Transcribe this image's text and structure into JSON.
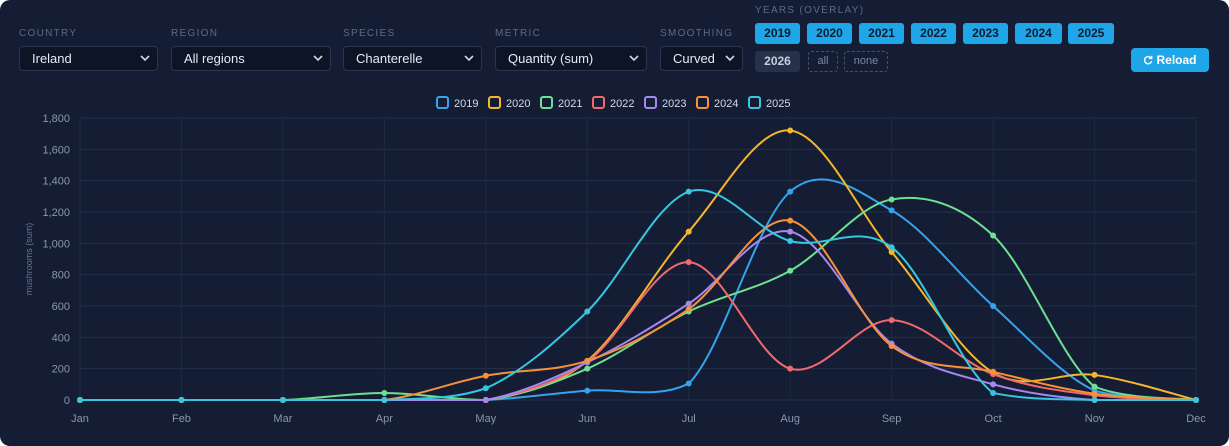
{
  "filters": {
    "country": {
      "label": "COUNTRY",
      "value": "Ireland"
    },
    "region": {
      "label": "REGION",
      "value": "All regions"
    },
    "species": {
      "label": "SPECIES",
      "value": "Chanterelle"
    },
    "metric": {
      "label": "METRIC",
      "value": "Quantity (sum)"
    },
    "smoothing": {
      "label": "SMOOTHING",
      "value": "Curved"
    }
  },
  "years": {
    "label": "YEARS (OVERLAY)",
    "chips": [
      {
        "label": "2019",
        "selected": true
      },
      {
        "label": "2020",
        "selected": true
      },
      {
        "label": "2021",
        "selected": true
      },
      {
        "label": "2022",
        "selected": true
      },
      {
        "label": "2023",
        "selected": true
      },
      {
        "label": "2024",
        "selected": true
      },
      {
        "label": "2025",
        "selected": true
      },
      {
        "label": "2026",
        "selected": false
      }
    ],
    "all_label": "all",
    "none_label": "none"
  },
  "reload_label": "Reload",
  "colors": {
    "accent": "#1ea6e8",
    "panel": "#141d33"
  },
  "chart_data": {
    "type": "line",
    "smoothing": "curved",
    "xlabel": "",
    "ylabel": "mushrooms (sum)",
    "ylim": [
      0,
      1800
    ],
    "yticks": [
      0,
      200,
      400,
      600,
      800,
      1000,
      1200,
      1400,
      1600,
      1800
    ],
    "categories": [
      "Jan",
      "Feb",
      "Mar",
      "Apr",
      "May",
      "Jun",
      "Jul",
      "Aug",
      "Sep",
      "Oct",
      "Nov",
      "Dec"
    ],
    "grid": true,
    "legend": "top-center",
    "series": [
      {
        "name": "2019",
        "color": "#36a2eb",
        "values": [
          0,
          0,
          0,
          0,
          0,
          60,
          105,
          1330,
          1210,
          600,
          60,
          0
        ]
      },
      {
        "name": "2020",
        "color": "#f4b62c",
        "values": [
          0,
          0,
          0,
          0,
          0,
          250,
          1075,
          1720,
          945,
          175,
          160,
          0
        ]
      },
      {
        "name": "2021",
        "color": "#6ee092",
        "values": [
          0,
          0,
          0,
          45,
          0,
          200,
          565,
          825,
          1280,
          1050,
          85,
          0
        ]
      },
      {
        "name": "2022",
        "color": "#f0696e",
        "values": [
          0,
          0,
          0,
          0,
          0,
          245,
          880,
          200,
          510,
          165,
          30,
          0
        ]
      },
      {
        "name": "2023",
        "color": "#a686f0",
        "values": [
          0,
          0,
          0,
          0,
          0,
          240,
          615,
          1075,
          360,
          100,
          0,
          0
        ]
      },
      {
        "name": "2024",
        "color": "#f6913c",
        "values": [
          0,
          0,
          0,
          0,
          155,
          250,
          580,
          1145,
          345,
          180,
          40,
          0
        ]
      },
      {
        "name": "2025",
        "color": "#36c6e0",
        "values": [
          0,
          0,
          0,
          0,
          75,
          565,
          1330,
          1015,
          975,
          45,
          0,
          0
        ]
      }
    ]
  }
}
